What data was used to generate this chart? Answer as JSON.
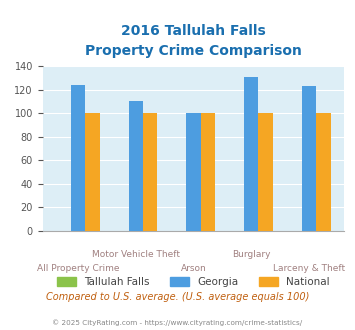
{
  "title_line1": "2016 Tallulah Falls",
  "title_line2": "Property Crime Comparison",
  "categories": [
    "All Property Crime",
    "Motor Vehicle Theft",
    "Arson",
    "Burglary",
    "Larceny & Theft"
  ],
  "x_labels_row1": [
    "",
    "Motor Vehicle Theft",
    "",
    "Burglary",
    ""
  ],
  "x_labels_row2": [
    "All Property Crime",
    "",
    "Arson",
    "",
    "Larceny & Theft"
  ],
  "tallulah_falls": [
    0,
    0,
    0,
    0,
    0
  ],
  "georgia": [
    124,
    110,
    100,
    131,
    123
  ],
  "national": [
    100,
    100,
    100,
    100,
    100
  ],
  "ylim": [
    0,
    140
  ],
  "yticks": [
    0,
    20,
    40,
    60,
    80,
    100,
    120,
    140
  ],
  "color_tallulah": "#8bc34a",
  "color_georgia": "#4d9de0",
  "color_national": "#f5a623",
  "title_color": "#1a6faf",
  "bg_color": "#ddeef6",
  "label_color": "#a08080",
  "footer_text": "Compared to U.S. average. (U.S. average equals 100)",
  "copyright_text": "© 2025 CityRating.com - https://www.cityrating.com/crime-statistics/",
  "legend_labels": [
    "Tallulah Falls",
    "Georgia",
    "National"
  ],
  "bar_width": 0.25
}
